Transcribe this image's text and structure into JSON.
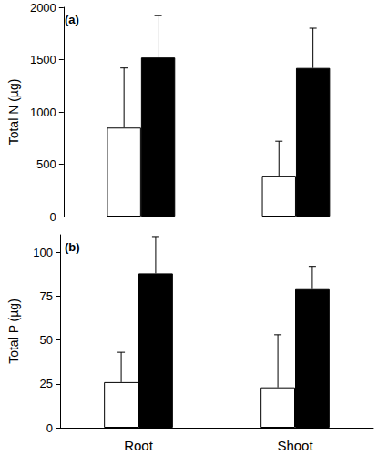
{
  "chart_data": [
    {
      "type": "bar",
      "title": "(a)",
      "ylabel": "Total N (µg)",
      "categories": [
        "Root",
        "Shoot"
      ],
      "series": [
        {
          "color": "#ffffff",
          "values": [
            850,
            390
          ],
          "errors": [
            570,
            330
          ]
        },
        {
          "color": "#000000",
          "values": [
            1520,
            1420
          ],
          "errors": [
            400,
            380
          ]
        }
      ],
      "ylim": [
        0,
        2000
      ],
      "yticks": [
        0,
        500,
        1000,
        1500,
        2000
      ],
      "grid": false,
      "tick_labels": "y"
    },
    {
      "type": "bar",
      "title": "(b)",
      "ylabel": "Total P (µg)",
      "categories": [
        "Root",
        "Shoot"
      ],
      "series": [
        {
          "color": "#ffffff",
          "values": [
            26,
            23
          ],
          "errors": [
            17,
            30
          ]
        },
        {
          "color": "#000000",
          "values": [
            88,
            79
          ],
          "errors": [
            21,
            13
          ]
        }
      ],
      "ylim": [
        0,
        110
      ],
      "yticks": [
        0,
        25,
        50,
        75,
        100
      ],
      "grid": false
    }
  ]
}
